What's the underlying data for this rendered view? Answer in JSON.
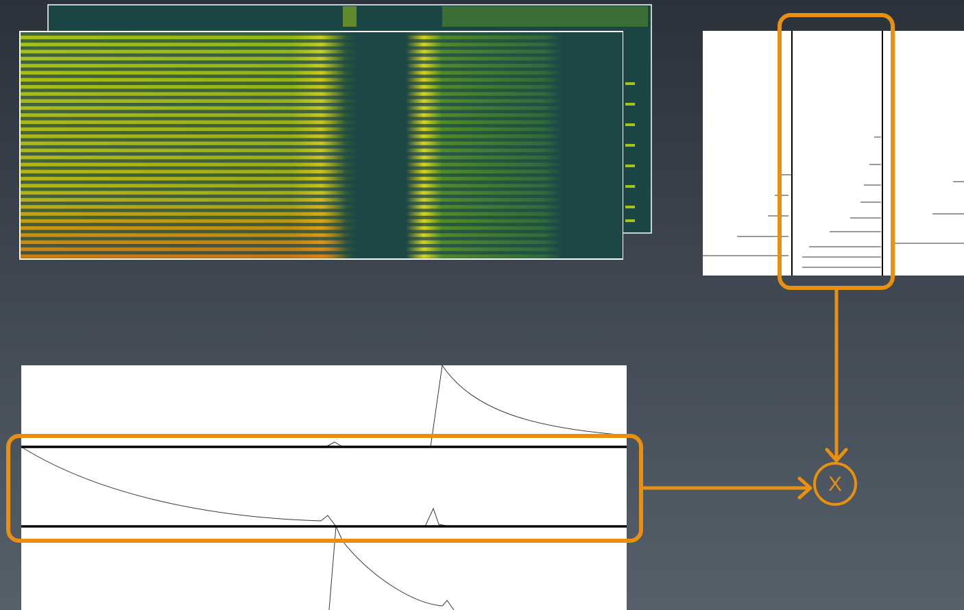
{
  "nodes": [
    {
      "label": "X"
    }
  ]
}
